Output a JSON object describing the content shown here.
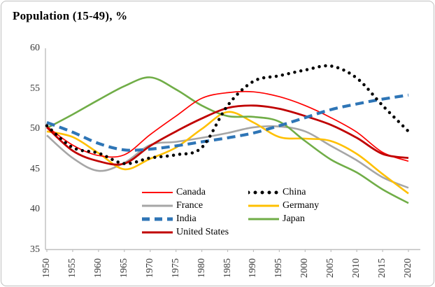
{
  "title": "Population (15-49), %",
  "chart_data": {
    "type": "line",
    "title": "Population (15-49), %",
    "xlabel": "",
    "ylabel": "",
    "x": [
      1950,
      1955,
      1960,
      1965,
      1970,
      1975,
      1980,
      1985,
      1990,
      1995,
      2000,
      2005,
      2010,
      2015,
      2020
    ],
    "x_tick_labels": [
      "1950",
      "1955",
      "1960",
      "1965",
      "1970",
      "1975",
      "1980",
      "1985",
      "1990",
      "1995",
      "2000",
      "2005",
      "2010",
      "2015",
      "2020"
    ],
    "ylim": [
      35,
      60
    ],
    "yticks": [
      35,
      40,
      45,
      50,
      55,
      60
    ],
    "grid": false,
    "legend_position": "inside bottom-center, two columns",
    "axis_color": "#bfbfbf",
    "tick_label_color": "#3b3b3b",
    "series": [
      {
        "name": "Canada",
        "color": "#FF0000",
        "style": "solid",
        "width": 1.7,
        "values": [
          50.3,
          48.0,
          46.7,
          46.8,
          49.3,
          51.6,
          53.8,
          54.5,
          54.6,
          54.0,
          52.9,
          51.4,
          49.6,
          47.1,
          46.0
        ]
      },
      {
        "name": "France",
        "color": "#A6A6A6",
        "style": "solid",
        "width": 2.6,
        "values": [
          49.2,
          46.4,
          44.8,
          45.8,
          48.0,
          48.4,
          48.9,
          49.5,
          50.2,
          50.3,
          49.7,
          47.9,
          46.1,
          44.0,
          42.7
        ]
      },
      {
        "name": "India",
        "color": "#2E75B6",
        "style": "dashed",
        "width": 4.2,
        "values": [
          50.8,
          49.6,
          48.2,
          47.4,
          47.5,
          47.9,
          48.4,
          48.9,
          49.5,
          50.4,
          51.4,
          52.4,
          53.1,
          53.7,
          54.2
        ]
      },
      {
        "name": "United States",
        "color": "#C00000",
        "style": "solid",
        "width": 2.8,
        "values": [
          50.2,
          47.3,
          46.0,
          45.7,
          47.9,
          49.7,
          51.3,
          52.6,
          52.9,
          52.5,
          51.6,
          50.5,
          48.9,
          46.9,
          46.4
        ]
      },
      {
        "name": "China",
        "color": "#000000",
        "style": "dotted",
        "width": 4.5,
        "values": [
          50.4,
          47.7,
          47.0,
          45.7,
          46.4,
          46.8,
          47.7,
          52.9,
          55.9,
          56.6,
          57.3,
          57.8,
          56.3,
          52.9,
          49.7
        ]
      },
      {
        "name": "Germany",
        "color": "#FFC000",
        "style": "solid",
        "width": 2.6,
        "values": [
          49.7,
          49.0,
          47.0,
          45.0,
          46.3,
          47.7,
          50.0,
          52.1,
          50.8,
          49.0,
          48.8,
          48.5,
          46.9,
          44.4,
          42.0
        ]
      },
      {
        "name": "Japan",
        "color": "#70AD47",
        "style": "solid",
        "width": 2.6,
        "values": [
          50.1,
          51.8,
          53.6,
          55.3,
          56.4,
          54.9,
          52.9,
          51.6,
          51.5,
          50.9,
          48.5,
          46.2,
          44.6,
          42.5,
          40.8
        ]
      }
    ]
  }
}
